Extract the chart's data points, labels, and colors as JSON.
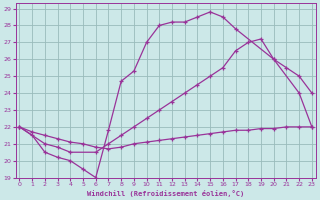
{
  "title": "Windchill (Refroidissement éolien,°C)",
  "bg_color": "#cce8e8",
  "line_color": "#993399",
  "grid_color": "#99bbbb",
  "xlim": [
    -0.3,
    23.3
  ],
  "ylim": [
    19.0,
    29.3
  ],
  "xticks": [
    0,
    1,
    2,
    3,
    4,
    5,
    6,
    7,
    8,
    9,
    10,
    11,
    12,
    13,
    14,
    15,
    16,
    17,
    18,
    19,
    20,
    21,
    22,
    23
  ],
  "yticks": [
    19,
    20,
    21,
    22,
    23,
    24,
    25,
    26,
    27,
    28,
    29
  ],
  "line1": {
    "x": [
      0,
      1,
      2,
      3,
      4,
      5,
      6,
      7,
      8,
      9,
      10,
      11,
      12,
      13,
      14,
      15,
      16,
      17,
      20,
      22,
      23
    ],
    "y": [
      22,
      21.5,
      20.5,
      20.2,
      20.0,
      19.5,
      19.0,
      21.8,
      24.7,
      25.3,
      27.0,
      28.0,
      28.2,
      28.2,
      28.5,
      28.8,
      28.5,
      27.8,
      26.0,
      24.0,
      22.0
    ]
  },
  "line2": {
    "x": [
      0,
      2,
      3,
      4,
      6,
      7,
      8,
      9,
      10,
      11,
      12,
      13,
      14,
      15,
      16,
      17,
      18,
      19,
      20,
      21,
      22,
      23
    ],
    "y": [
      22,
      21.0,
      20.8,
      20.5,
      20.5,
      21.0,
      21.5,
      22.0,
      22.5,
      23.0,
      23.5,
      24.0,
      24.5,
      25.0,
      25.5,
      26.5,
      27.0,
      27.2,
      26.0,
      25.5,
      25.0,
      24.0
    ]
  },
  "line3": {
    "x": [
      0,
      1,
      2,
      3,
      4,
      5,
      6,
      7,
      8,
      9,
      10,
      11,
      12,
      13,
      14,
      15,
      16,
      17,
      18,
      19,
      20,
      21,
      22,
      23
    ],
    "y": [
      22,
      21.7,
      21.5,
      21.3,
      21.1,
      21.0,
      20.8,
      20.7,
      20.8,
      21.0,
      21.1,
      21.2,
      21.3,
      21.4,
      21.5,
      21.6,
      21.7,
      21.8,
      21.8,
      21.9,
      21.9,
      22.0,
      22.0,
      22.0
    ]
  }
}
